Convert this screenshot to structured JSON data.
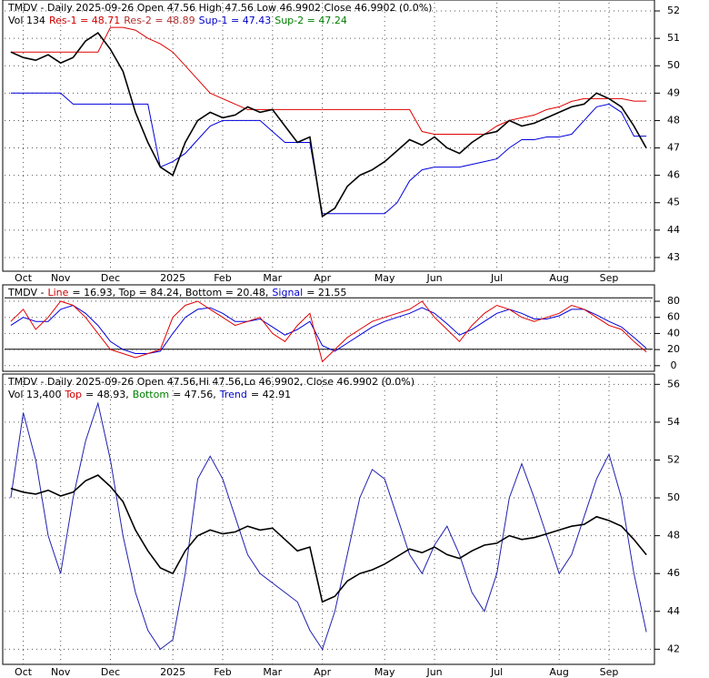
{
  "chart_data": [
    {
      "type": "line",
      "header": [
        [
          {
            "text": "TMDV - Daily 2025-09-26 Open 47.56  High 47.56  Low 46.9902  Close 46.9902 (0.0%)",
            "color": "#000000"
          }
        ],
        [
          {
            "text": "Vol 134",
            "color": "#000000"
          },
          {
            "text": "Res-1 = 48.71",
            "color": "#d00000"
          },
          {
            "text": "Res-2 = 48.89",
            "color": "#b03030"
          },
          {
            "text": "Sup-1 = 47.43",
            "color": "#0000cc"
          },
          {
            "text": "Sup-2 = 47.24",
            "color": "#008000"
          }
        ]
      ],
      "categories": [
        null,
        "Oct",
        null,
        null,
        "Nov",
        null,
        null,
        null,
        "Dec",
        null,
        null,
        null,
        null,
        "2025",
        null,
        null,
        null,
        "Feb",
        null,
        null,
        null,
        "Mar",
        null,
        null,
        null,
        "Apr",
        null,
        null,
        null,
        null,
        "May",
        null,
        null,
        null,
        "Jun",
        null,
        null,
        null,
        null,
        "Jul",
        null,
        null,
        null,
        null,
        "Aug",
        null,
        null,
        null,
        "Sep",
        null,
        null,
        null
      ],
      "series": [
        {
          "name": "Res-1",
          "color": "#e00000",
          "values": [
            50.5,
            50.5,
            50.5,
            50.5,
            50.5,
            50.5,
            50.5,
            50.5,
            51.4,
            51.4,
            51.3,
            51.0,
            50.8,
            50.5,
            50.0,
            49.5,
            49.0,
            48.8,
            48.6,
            48.4,
            48.4,
            48.4,
            48.4,
            48.4,
            48.4,
            48.4,
            48.4,
            48.4,
            48.4,
            48.4,
            48.4,
            48.4,
            48.4,
            47.6,
            47.5,
            47.5,
            47.5,
            47.5,
            47.5,
            47.8,
            48.0,
            48.1,
            48.2,
            48.4,
            48.5,
            48.7,
            48.8,
            48.8,
            48.8,
            48.8,
            48.71,
            48.71
          ]
        },
        {
          "name": "Sup-1",
          "color": "#0000dd",
          "values": [
            49.0,
            49.0,
            49.0,
            49.0,
            49.0,
            48.6,
            48.6,
            48.6,
            48.6,
            48.6,
            48.6,
            48.6,
            46.3,
            46.5,
            46.8,
            47.3,
            47.8,
            48.0,
            48.0,
            48.0,
            48.0,
            47.6,
            47.2,
            47.2,
            47.2,
            44.6,
            44.6,
            44.6,
            44.6,
            44.6,
            44.6,
            45.0,
            45.8,
            46.2,
            46.3,
            46.3,
            46.3,
            46.4,
            46.5,
            46.6,
            47.0,
            47.3,
            47.3,
            47.4,
            47.4,
            47.5,
            48.0,
            48.5,
            48.6,
            48.3,
            47.43,
            47.43
          ]
        },
        {
          "name": "Close",
          "color": "#000000",
          "values": [
            50.5,
            50.3,
            50.2,
            50.4,
            50.1,
            50.3,
            50.9,
            51.2,
            50.6,
            49.8,
            48.3,
            47.2,
            46.3,
            46.0,
            47.2,
            48.0,
            48.3,
            48.1,
            48.2,
            48.5,
            48.3,
            48.4,
            47.8,
            47.2,
            47.4,
            44.5,
            44.8,
            45.6,
            46.0,
            46.2,
            46.5,
            46.9,
            47.3,
            47.1,
            47.4,
            47.0,
            46.8,
            47.2,
            47.5,
            47.6,
            48.0,
            47.8,
            47.9,
            48.1,
            48.3,
            48.5,
            48.6,
            49.0,
            48.8,
            48.5,
            47.8,
            46.9902
          ]
        }
      ],
      "ylim": [
        42.5,
        52.3
      ],
      "yticks": [
        43,
        44,
        45,
        46,
        47,
        48,
        49,
        50,
        51,
        52
      ],
      "grid": true
    },
    {
      "type": "line",
      "header": [
        [
          {
            "text": "TMDV -",
            "color": "#000000"
          },
          {
            "text": "Line",
            "color": "#d00000"
          },
          {
            "text": "= 16.93, Top = 84.24, Bottom = 20.48,",
            "color": "#000000"
          },
          {
            "text": "Signal",
            "color": "#0000cc"
          },
          {
            "text": "= 21.55",
            "color": "#000000"
          }
        ]
      ],
      "series": [
        {
          "name": "Signal",
          "color": "#0000dd",
          "values": [
            50,
            60,
            55,
            55,
            70,
            75,
            65,
            50,
            30,
            20,
            15,
            15,
            18,
            40,
            60,
            70,
            72,
            65,
            55,
            55,
            58,
            48,
            38,
            45,
            55,
            25,
            18,
            28,
            38,
            48,
            55,
            60,
            65,
            72,
            65,
            52,
            38,
            45,
            55,
            65,
            70,
            65,
            58,
            58,
            62,
            70,
            70,
            63,
            55,
            48,
            35,
            21.55
          ]
        },
        {
          "name": "Line",
          "color": "#e00000",
          "values": [
            55,
            70,
            45,
            60,
            80,
            75,
            60,
            40,
            20,
            15,
            10,
            15,
            20,
            60,
            75,
            80,
            70,
            60,
            50,
            55,
            60,
            40,
            30,
            50,
            65,
            5,
            20,
            35,
            45,
            55,
            60,
            65,
            70,
            80,
            60,
            45,
            30,
            50,
            65,
            75,
            70,
            60,
            55,
            60,
            65,
            75,
            70,
            60,
            50,
            45,
            30,
            16.93
          ]
        }
      ],
      "hlines": [
        84.24,
        20.48
      ],
      "ylim": [
        -7,
        97
      ],
      "yticks": [
        0,
        20,
        40,
        60,
        80
      ],
      "grid": true
    },
    {
      "type": "line",
      "header": [
        [
          {
            "text": "TMDV - Daily 2025-09-26 Open 47.56,Hi 47.56,Lo 46.9902, Close 46.9902 (0.0%)",
            "color": "#000000"
          }
        ],
        [
          {
            "text": "Vol 13,400",
            "color": "#000000"
          },
          {
            "text": "Top",
            "color": "#d00000"
          },
          {
            "text": "= 48.93,",
            "color": "#000000"
          },
          {
            "text": "Bottom",
            "color": "#008000"
          },
          {
            "text": "= 47.56,",
            "color": "#000000"
          },
          {
            "text": "Trend",
            "color": "#0000cc"
          },
          {
            "text": "= 42.91",
            "color": "#000000"
          }
        ]
      ],
      "categories": [
        null,
        "Oct",
        null,
        null,
        "Nov",
        null,
        null,
        null,
        "Dec",
        null,
        null,
        null,
        null,
        "2025",
        null,
        null,
        null,
        "Feb",
        null,
        null,
        null,
        "Mar",
        null,
        null,
        null,
        "Apr",
        null,
        null,
        null,
        null,
        "May",
        null,
        null,
        null,
        "Jun",
        null,
        null,
        null,
        null,
        "Jul",
        null,
        null,
        null,
        null,
        "Aug",
        null,
        null,
        null,
        "Sep",
        null,
        null,
        null
      ],
      "series": [
        {
          "name": "Trend",
          "color": "#2020b0",
          "values": [
            50,
            54.5,
            52,
            48,
            46,
            50,
            53,
            55,
            52,
            48,
            45,
            43,
            42,
            42.5,
            46,
            51,
            52.2,
            51,
            49,
            47,
            46,
            45.5,
            45,
            44.5,
            43,
            42,
            44,
            47,
            50,
            51.5,
            51,
            49,
            47,
            46,
            47.5,
            48.5,
            47,
            45,
            44,
            46,
            50,
            51.8,
            50,
            48,
            46,
            47,
            49,
            51,
            52.3,
            50,
            46,
            42.91
          ]
        },
        {
          "name": "Close",
          "color": "#000000",
          "values": [
            50.5,
            50.3,
            50.2,
            50.4,
            50.1,
            50.3,
            50.9,
            51.2,
            50.6,
            49.8,
            48.3,
            47.2,
            46.3,
            46.0,
            47.2,
            48.0,
            48.3,
            48.1,
            48.2,
            48.5,
            48.3,
            48.4,
            47.8,
            47.2,
            47.4,
            44.5,
            44.8,
            45.6,
            46.0,
            46.2,
            46.5,
            46.9,
            47.3,
            47.1,
            47.4,
            47.0,
            46.8,
            47.2,
            47.5,
            47.6,
            48.0,
            47.8,
            47.9,
            48.1,
            48.3,
            48.5,
            48.6,
            49.0,
            48.8,
            48.5,
            47.8,
            46.9902
          ]
        }
      ],
      "ylim": [
        41.2,
        56.4
      ],
      "yticks": [
        42,
        44,
        46,
        48,
        50,
        52,
        54,
        56
      ],
      "grid": true
    }
  ]
}
